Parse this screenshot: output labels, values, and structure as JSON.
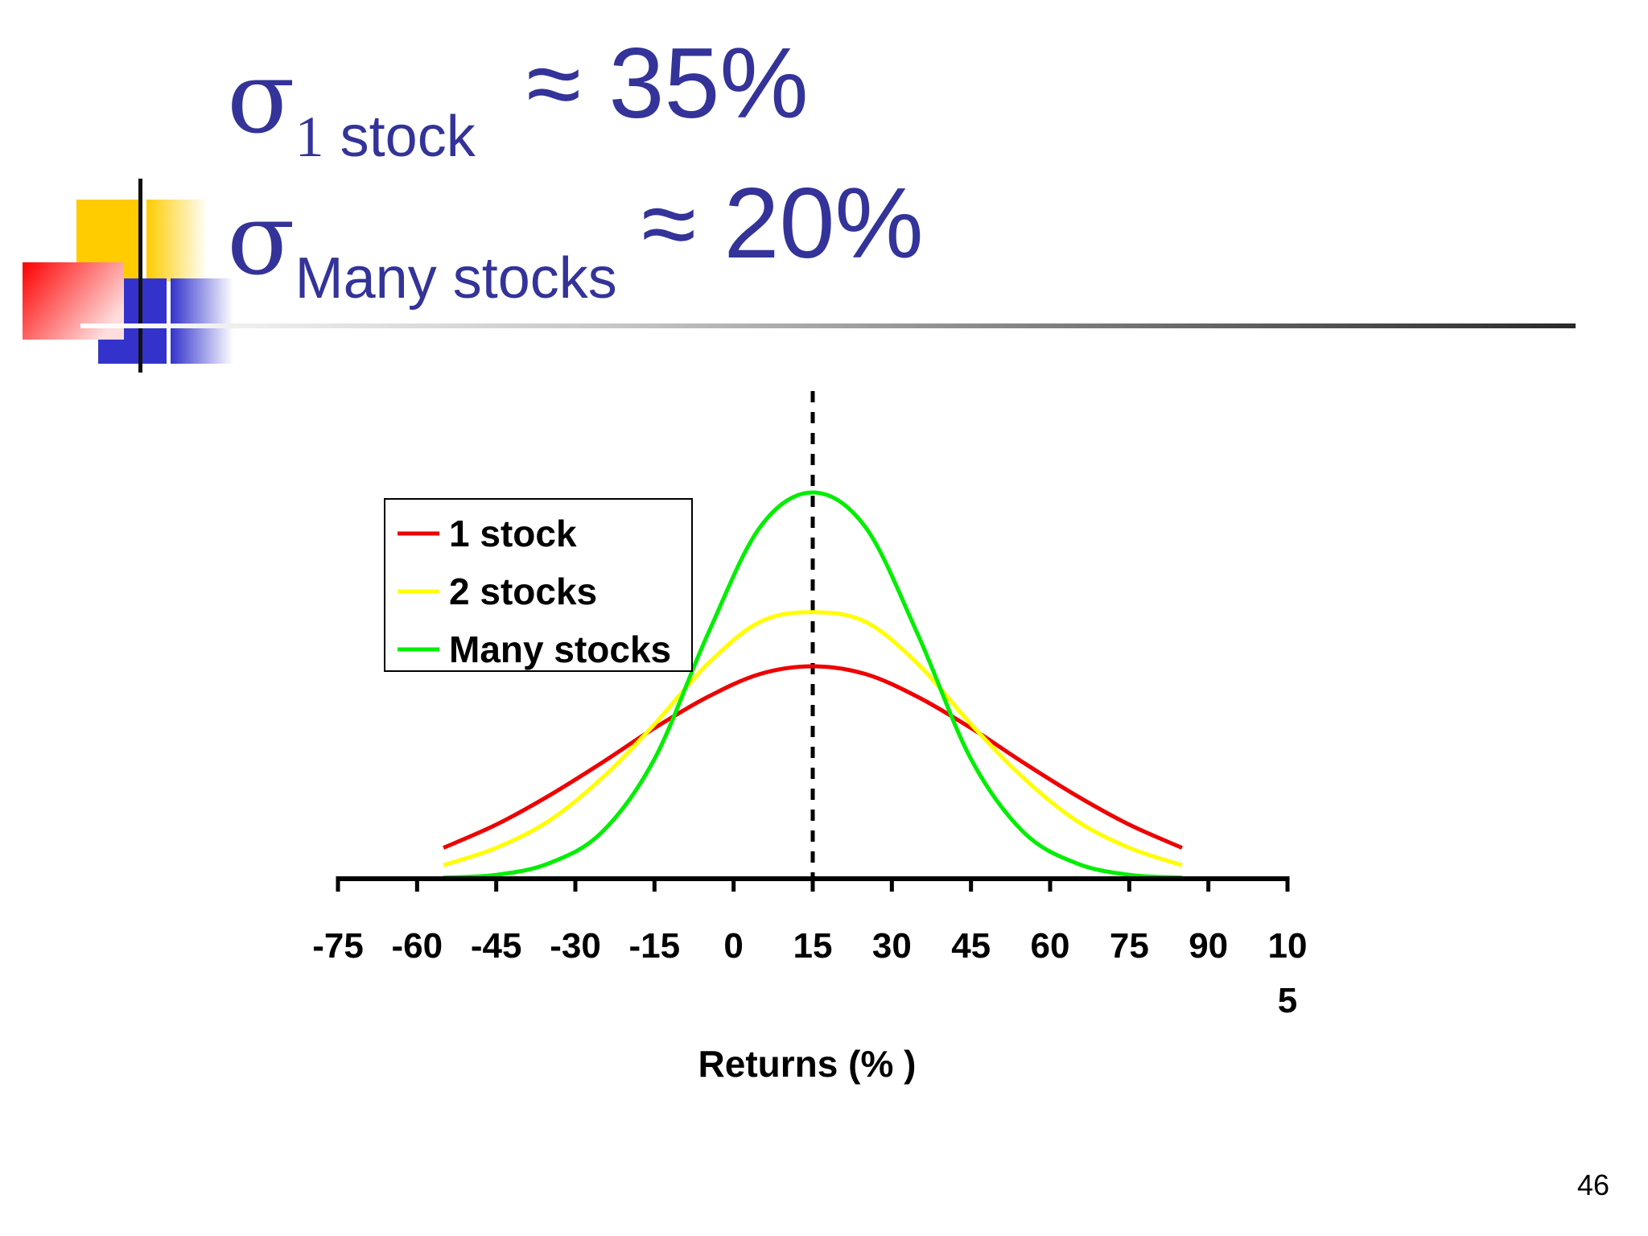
{
  "slide": {
    "heading_line1": {
      "symbol": "σ",
      "subscript_num": "1",
      "subscript_text": " stock",
      "value": "≈ 35%"
    },
    "heading_line2": {
      "symbol": "σ",
      "subscript_text": "Many stocks",
      "value": "≈ 20%"
    },
    "page_number": "46"
  },
  "colors": {
    "heading_text": "#333399",
    "deco_yellow": "#ffcc00",
    "deco_red": "#ff0000",
    "deco_blue": "#3333cc"
  },
  "chart_data": {
    "type": "line",
    "xlabel": "Returns (% )",
    "ylabel": "",
    "tick_labels": [
      "-75",
      "-60",
      "-45",
      "-30",
      "-15",
      "0",
      "15",
      "30",
      "45",
      "60",
      "75",
      "90",
      "10\n5"
    ],
    "xlim": [
      -75,
      105
    ],
    "ylim": [
      0,
      100
    ],
    "mean_line": {
      "x": 15,
      "style": "dashed"
    },
    "legend_position": "upper-left",
    "grid": false,
    "x": [
      -55,
      -45,
      -35,
      -25,
      -15,
      -5,
      5,
      15,
      25,
      35,
      45,
      55,
      65,
      75,
      85
    ],
    "series": [
      {
        "name": "1 stock",
        "color": "#ee0000",
        "values": [
          8.0,
          14.0,
          21.5,
          30.0,
          39.0,
          47.0,
          53.0,
          55.0,
          53.0,
          47.0,
          39.0,
          30.0,
          21.5,
          14.0,
          8.0
        ]
      },
      {
        "name": "2 stocks",
        "color": "#ffff00",
        "values": [
          3.5,
          8.0,
          15.0,
          26.0,
          40.0,
          55.5,
          66.5,
          69.0,
          66.5,
          55.5,
          40.0,
          26.0,
          15.0,
          8.0,
          3.5
        ]
      },
      {
        "name": "Many stocks",
        "color": "#00ee00",
        "values": [
          0.3,
          1.0,
          4.0,
          12.0,
          31.0,
          63.0,
          91.0,
          100.0,
          91.0,
          63.0,
          31.0,
          12.0,
          4.0,
          1.0,
          0.3
        ]
      }
    ]
  }
}
